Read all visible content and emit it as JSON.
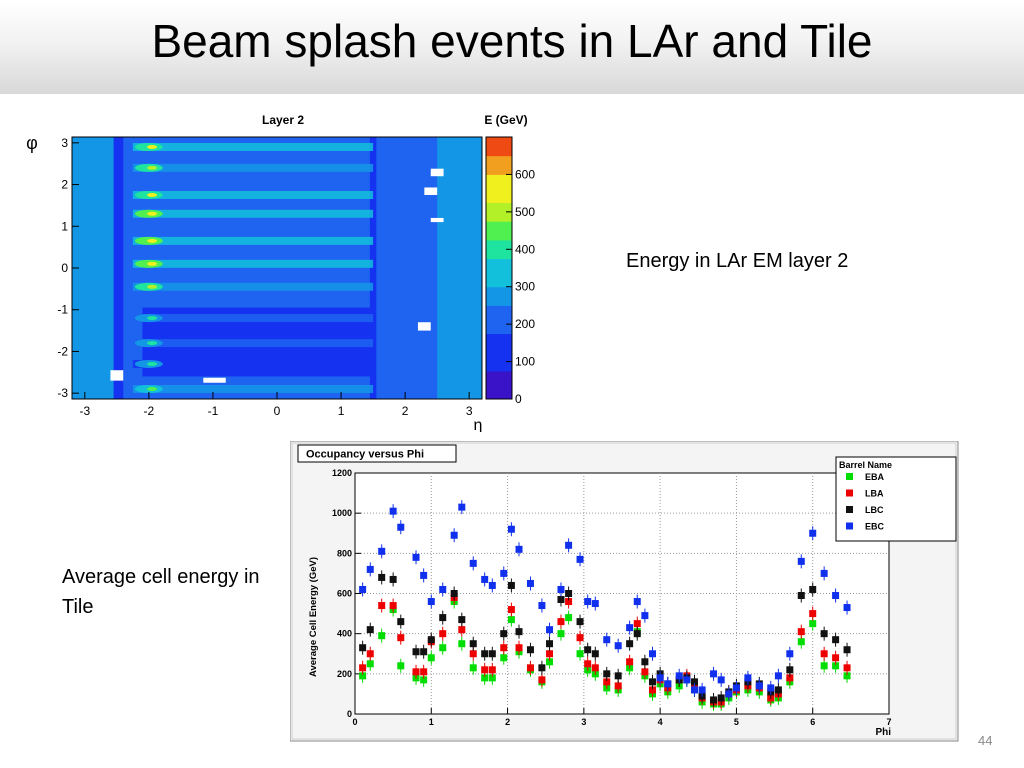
{
  "slide": {
    "title": "Beam splash events in LAr and Tile",
    "caption_larg": "Energy in LAr EM layer 2",
    "caption_tile": "Average cell energy in Tile",
    "slide_number": "44"
  },
  "chart_data": [
    {
      "type": "heatmap",
      "title": "Layer 2",
      "xlabel": "η",
      "ylabel": "φ",
      "xlim": [
        -3.2,
        3.2
      ],
      "ylim": [
        -3.14,
        3.14
      ],
      "xticks": [
        "-3",
        "-2",
        "-1",
        "0",
        "1",
        "2",
        "3"
      ],
      "yticks": [
        "3",
        "2",
        "1",
        "0",
        "-1",
        "-2",
        "-3"
      ],
      "colorbar": {
        "label": "E (GeV)",
        "range": [
          0,
          700
        ],
        "ticks": [
          "600",
          "500",
          "400",
          "300",
          "200",
          "100",
          "0"
        ]
      },
      "phi_bands": [
        {
          "phi": 2.9,
          "energy": 420
        },
        {
          "phi": 2.4,
          "energy": 380
        },
        {
          "phi": 1.75,
          "energy": 420
        },
        {
          "phi": 1.3,
          "energy": 430
        },
        {
          "phi": 0.65,
          "energy": 430
        },
        {
          "phi": 0.1,
          "energy": 430
        },
        {
          "phi": -0.45,
          "energy": 380
        },
        {
          "phi": -1.2,
          "energy": 280
        },
        {
          "phi": -1.8,
          "energy": 270
        },
        {
          "phi": -2.3,
          "energy": 260
        },
        {
          "phi": -2.9,
          "energy": 350
        }
      ]
    },
    {
      "type": "scatter",
      "title": "Occupancy versus Phi",
      "xlabel": "Phi",
      "ylabel": "Average Cell Energy (GeV)",
      "xlim": [
        0,
        7
      ],
      "ylim": [
        0,
        1200
      ],
      "xticks": [
        0,
        1,
        2,
        3,
        4,
        5,
        6,
        7
      ],
      "yticks": [
        0,
        200,
        400,
        600,
        800,
        1000,
        1200
      ],
      "legend_title": "Barrel Name",
      "legend_position": "top-right",
      "x": [
        0.1,
        0.2,
        0.35,
        0.5,
        0.6,
        0.8,
        0.9,
        1.0,
        1.15,
        1.3,
        1.4,
        1.55,
        1.7,
        1.8,
        1.95,
        2.05,
        2.15,
        2.3,
        2.45,
        2.55,
        2.7,
        2.8,
        2.95,
        3.05,
        3.15,
        3.3,
        3.45,
        3.6,
        3.7,
        3.8,
        3.9,
        4.0,
        4.1,
        4.25,
        4.35,
        4.45,
        4.55,
        4.7,
        4.8,
        4.9,
        5.0,
        5.15,
        5.3,
        5.45,
        5.55,
        5.7,
        5.85,
        6.0,
        6.15,
        6.3,
        6.45
      ],
      "series": [
        {
          "name": "EBA",
          "color": "#00dd00",
          "values": [
            190,
            250,
            390,
            520,
            240,
            180,
            170,
            280,
            330,
            560,
            350,
            230,
            180,
            180,
            280,
            470,
            310,
            220,
            160,
            260,
            400,
            480,
            300,
            220,
            200,
            130,
            120,
            230,
            410,
            190,
            100,
            150,
            110,
            140,
            170,
            120,
            60,
            50,
            50,
            80,
            110,
            120,
            110,
            70,
            80,
            160,
            360,
            450,
            240,
            240,
            190
          ]
        },
        {
          "name": "LBA",
          "color": "#ee0000",
          "values": [
            230,
            300,
            540,
            540,
            380,
            210,
            210,
            360,
            400,
            580,
            420,
            300,
            220,
            220,
            330,
            520,
            330,
            230,
            170,
            300,
            460,
            560,
            380,
            250,
            230,
            160,
            140,
            260,
            450,
            210,
            120,
            170,
            130,
            170,
            190,
            140,
            80,
            60,
            60,
            100,
            120,
            140,
            130,
            80,
            100,
            180,
            410,
            500,
            300,
            280,
            230
          ]
        },
        {
          "name": "LBC",
          "color": "#111111",
          "values": [
            330,
            420,
            680,
            670,
            460,
            310,
            310,
            370,
            480,
            600,
            470,
            350,
            300,
            300,
            400,
            640,
            410,
            320,
            230,
            350,
            570,
            600,
            460,
            320,
            300,
            200,
            190,
            350,
            400,
            260,
            160,
            200,
            150,
            170,
            180,
            160,
            90,
            70,
            80,
            110,
            140,
            160,
            150,
            110,
            120,
            220,
            590,
            620,
            400,
            370,
            320
          ]
        },
        {
          "name": "EBC",
          "color": "#1030ee",
          "values": [
            620,
            720,
            810,
            1010,
            930,
            780,
            690,
            560,
            620,
            890,
            1030,
            750,
            670,
            640,
            700,
            920,
            820,
            650,
            540,
            420,
            620,
            840,
            770,
            560,
            550,
            370,
            340,
            430,
            560,
            490,
            300,
            180,
            150,
            190,
            170,
            120,
            120,
            200,
            170,
            100,
            130,
            180,
            140,
            130,
            190,
            300,
            760,
            900,
            700,
            590,
            530
          ]
        }
      ]
    }
  ]
}
